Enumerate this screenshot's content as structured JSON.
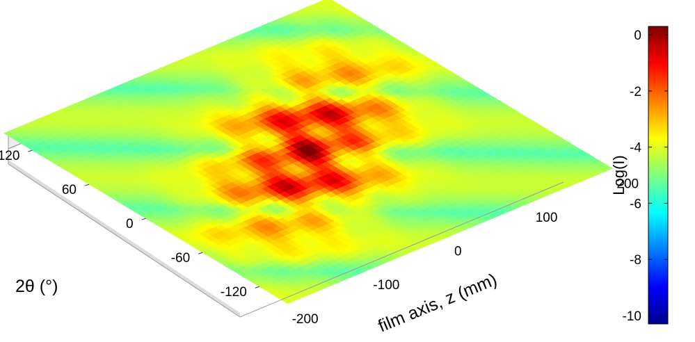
{
  "chart_data": {
    "type": "surface",
    "title": "",
    "xlabel": "film axis, z (mm)",
    "ylabel": "2θ (°)",
    "zlabel": "Log(I)",
    "x_ticks": [
      -200,
      -100,
      0,
      100,
      200
    ],
    "y_ticks": [
      -120,
      -60,
      0,
      60,
      120
    ],
    "colorbar_ticks": [
      0,
      -2,
      -4,
      -6,
      -8,
      -10
    ],
    "xlim": [
      -200,
      200
    ],
    "ylim": [
      -150,
      150
    ],
    "clim": [
      -10.3,
      0.3
    ],
    "colormap": "jet",
    "peak": {
      "z_mm": 0,
      "two_theta_deg": 0,
      "log_intensity": -0.5
    },
    "background_log_intensity": -5.5,
    "grid": true
  }
}
